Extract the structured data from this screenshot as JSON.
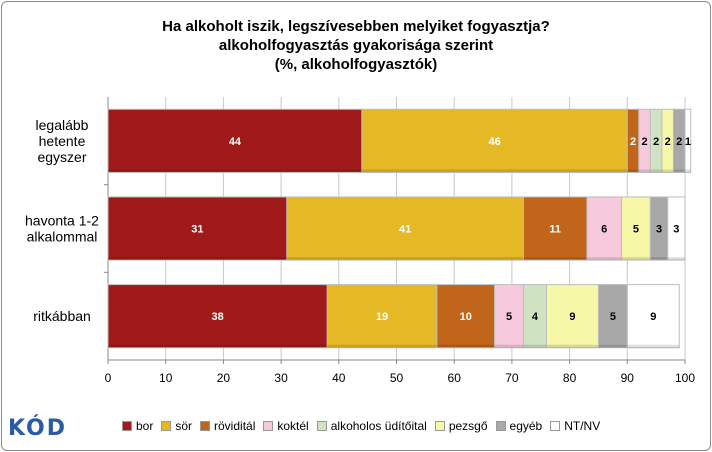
{
  "chart_data": {
    "type": "bar",
    "orientation": "horizontal",
    "stacked": true,
    "title": [
      "Ha alkoholt iszik, legszívesebben melyiket fogyasztja?",
      "alkoholfogyasztás gyakorisága szerint",
      "(%, alkoholfogyasztók)"
    ],
    "categories": [
      [
        "legalább",
        "hetente",
        "egyszer"
      ],
      [
        "havonta 1-2",
        "alkalommal"
      ],
      [
        "ritkábban"
      ]
    ],
    "series": [
      {
        "name": "bor",
        "color": "#a11a1a",
        "values": [
          44,
          31,
          38
        ]
      },
      {
        "name": "sör",
        "color": "#e5b826",
        "values": [
          46,
          41,
          19
        ]
      },
      {
        "name": "röviditál",
        "color": "#c0651a",
        "values": [
          2,
          11,
          10
        ]
      },
      {
        "name": "koktél",
        "color": "#f6c9dc",
        "values": [
          2,
          6,
          5
        ]
      },
      {
        "name": "alkoholos üdítőital",
        "color": "#cfe2c2",
        "values": [
          2,
          0,
          4
        ]
      },
      {
        "name": "pezsgő",
        "color": "#f7f7a8",
        "values": [
          2,
          5,
          9
        ]
      },
      {
        "name": "egyéb",
        "color": "#a8a8a8",
        "values": [
          2,
          3,
          5
        ]
      },
      {
        "name": "NT/NV",
        "color": "#ffffff",
        "values": [
          1,
          3,
          9
        ]
      }
    ],
    "xlim": [
      0,
      100
    ],
    "xticks": [
      0,
      10,
      20,
      30,
      40,
      50,
      60,
      70,
      80,
      90,
      100
    ],
    "grid": "vertical",
    "legend_position": "bottom"
  },
  "logo_text": "KÓD"
}
